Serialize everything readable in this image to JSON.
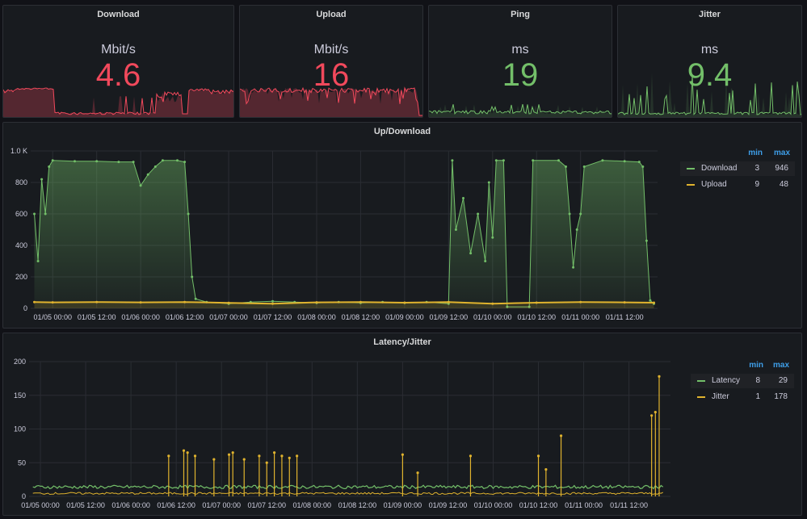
{
  "colors": {
    "red": "#f2495c",
    "green": "#73bf69",
    "yellow": "#fade2a",
    "orange": "#e0b32e",
    "legendHeader": "#3e9ee8"
  },
  "stats": [
    {
      "title": "Download",
      "unit": "Mbit/s",
      "value": "4.6",
      "color": "#f2495c"
    },
    {
      "title": "Upload",
      "unit": "Mbit/s",
      "value": "16",
      "color": "#f2495c"
    },
    {
      "title": "Ping",
      "unit": "ms",
      "value": "19",
      "color": "#73bf69"
    },
    {
      "title": "Jitter",
      "unit": "ms",
      "value": "9.4",
      "color": "#73bf69"
    }
  ],
  "updown": {
    "title": "Up/Download",
    "legend": {
      "min_label": "min",
      "max_label": "max",
      "rows": [
        {
          "name": "Download",
          "min": "3",
          "max": "946"
        },
        {
          "name": "Upload",
          "min": "9",
          "max": "48"
        }
      ]
    }
  },
  "latency": {
    "title": "Latency/Jitter",
    "legend": {
      "min_label": "min",
      "max_label": "max",
      "rows": [
        {
          "name": "Latency",
          "min": "8",
          "max": "29"
        },
        {
          "name": "Jitter",
          "min": "1",
          "max": "178"
        }
      ]
    }
  },
  "chart_data": [
    {
      "type": "area",
      "title": "Up/Download",
      "x_ticks": [
        "01/05 00:00",
        "01/05 12:00",
        "01/06 00:00",
        "01/06 12:00",
        "01/07 00:00",
        "01/07 12:00",
        "01/08 00:00",
        "01/08 12:00",
        "01/09 00:00",
        "01/09 12:00",
        "01/10 00:00",
        "01/10 12:00",
        "01/11 00:00",
        "01/11 12:00"
      ],
      "y_ticks": [
        "0",
        "200",
        "400",
        "600",
        "800",
        "1.0 K"
      ],
      "ylim": [
        0,
        1000
      ],
      "x_range_hours": [
        -6,
        165
      ],
      "series": [
        {
          "name": "Download",
          "color": "#73bf69",
          "points": [
            [
              -5,
              600
            ],
            [
              -4,
              300
            ],
            [
              -3,
              820
            ],
            [
              -2,
              600
            ],
            [
              -1,
              900
            ],
            [
              0,
              940
            ],
            [
              6,
              935
            ],
            [
              12,
              935
            ],
            [
              18,
              930
            ],
            [
              22,
              930
            ],
            [
              24,
              780
            ],
            [
              26,
              850
            ],
            [
              28,
              900
            ],
            [
              30,
              940
            ],
            [
              34,
              940
            ],
            [
              36,
              930
            ],
            [
              37,
              600
            ],
            [
              38,
              200
            ],
            [
              39,
              60
            ],
            [
              42,
              40
            ],
            [
              48,
              30
            ],
            [
              54,
              40
            ],
            [
              60,
              45
            ],
            [
              66,
              40
            ],
            [
              72,
              35
            ],
            [
              78,
              40
            ],
            [
              84,
              35
            ],
            [
              90,
              40
            ],
            [
              96,
              35
            ],
            [
              102,
              40
            ],
            [
              108,
              30
            ],
            [
              109,
              940
            ],
            [
              110,
              500
            ],
            [
              112,
              700
            ],
            [
              114,
              350
            ],
            [
              116,
              600
            ],
            [
              118,
              300
            ],
            [
              119,
              800
            ],
            [
              120,
              450
            ],
            [
              121,
              940
            ],
            [
              123,
              940
            ],
            [
              124,
              10
            ],
            [
              130,
              10
            ],
            [
              131,
              940
            ],
            [
              138,
              940
            ],
            [
              140,
              900
            ],
            [
              141,
              600
            ],
            [
              142,
              260
            ],
            [
              143,
              500
            ],
            [
              144,
              600
            ],
            [
              145,
              900
            ],
            [
              150,
              940
            ],
            [
              156,
              935
            ],
            [
              160,
              930
            ],
            [
              161,
              900
            ],
            [
              162,
              430
            ],
            [
              163,
              50
            ],
            [
              164,
              30
            ]
          ]
        },
        {
          "name": "Upload",
          "color": "#e0b32e",
          "points": [
            [
              -5,
              40
            ],
            [
              0,
              38
            ],
            [
              12,
              40
            ],
            [
              24,
              38
            ],
            [
              36,
              40
            ],
            [
              48,
              35
            ],
            [
              60,
              30
            ],
            [
              72,
              38
            ],
            [
              84,
              40
            ],
            [
              96,
              36
            ],
            [
              108,
              40
            ],
            [
              120,
              30
            ],
            [
              132,
              36
            ],
            [
              144,
              40
            ],
            [
              156,
              38
            ],
            [
              164,
              36
            ]
          ]
        }
      ]
    },
    {
      "type": "line",
      "title": "Latency/Jitter",
      "x_ticks": [
        "01/05 00:00",
        "01/05 12:00",
        "01/06 00:00",
        "01/06 12:00",
        "01/07 00:00",
        "01/07 12:00",
        "01/08 00:00",
        "01/08 12:00",
        "01/09 00:00",
        "01/09 12:00",
        "01/10 00:00",
        "01/10 12:00",
        "01/11 00:00",
        "01/11 12:00"
      ],
      "y_ticks": [
        "0",
        "50",
        "100",
        "150",
        "200"
      ],
      "ylim": [
        0,
        200
      ],
      "x_range_hours": [
        -3,
        167
      ],
      "series": [
        {
          "name": "Latency",
          "color": "#73bf69",
          "baseline": 14
        },
        {
          "name": "Jitter",
          "color": "#e0b32e",
          "baseline": 3,
          "spikes": [
            [
              34,
              60
            ],
            [
              38,
              68
            ],
            [
              39,
              65
            ],
            [
              41,
              60
            ],
            [
              46,
              55
            ],
            [
              50,
              62
            ],
            [
              51,
              65
            ],
            [
              54,
              55
            ],
            [
              58,
              60
            ],
            [
              60,
              50
            ],
            [
              62,
              65
            ],
            [
              64,
              60
            ],
            [
              66,
              57
            ],
            [
              68,
              60
            ],
            [
              96,
              62
            ],
            [
              100,
              35
            ],
            [
              114,
              60
            ],
            [
              132,
              60
            ],
            [
              134,
              40
            ],
            [
              138,
              90
            ],
            [
              162,
              120
            ],
            [
              163,
              125
            ],
            [
              164,
              178
            ]
          ]
        }
      ]
    }
  ]
}
